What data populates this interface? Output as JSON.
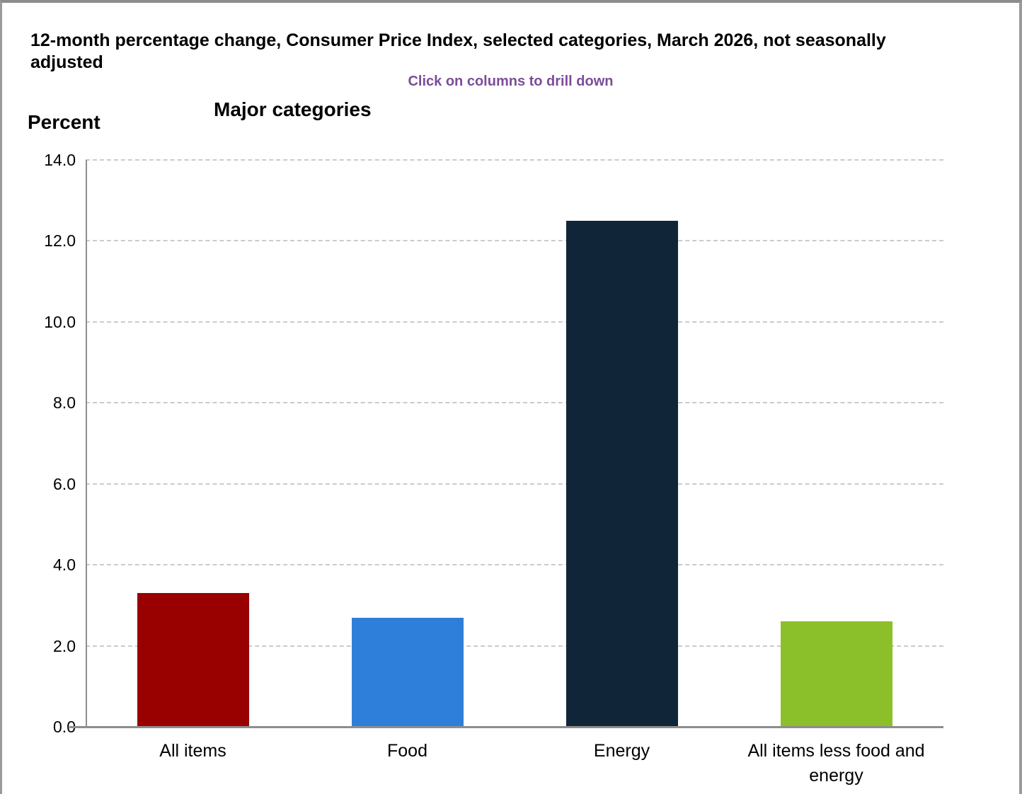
{
  "page": {
    "title": "12-month percentage change, Consumer Price Index, selected categories, March 2026, not seasonally adjusted",
    "subtitle": "Click on columns to drill down",
    "subtitle_color": "#7c4d9a"
  },
  "chart_data": {
    "type": "bar",
    "title": "Major categories",
    "ylabel": "Percent",
    "categories": [
      "All items",
      "Food",
      "Energy",
      "All items less food and energy"
    ],
    "values": [
      3.3,
      2.7,
      12.5,
      2.6
    ],
    "bar_colors": [
      "#990000",
      "#2e7fd9",
      "#112539",
      "#8cc02a"
    ],
    "ylim": [
      0,
      14
    ],
    "ytick_step": 2,
    "ytick_labels": [
      "0.0",
      "2.0",
      "4.0",
      "6.0",
      "8.0",
      "10.0",
      "12.0",
      "14.0"
    ],
    "grid": "horizontal-dashed",
    "gridline_color": "#cbcbcb",
    "axis_color": "#8e8e8e",
    "legend": "none"
  }
}
